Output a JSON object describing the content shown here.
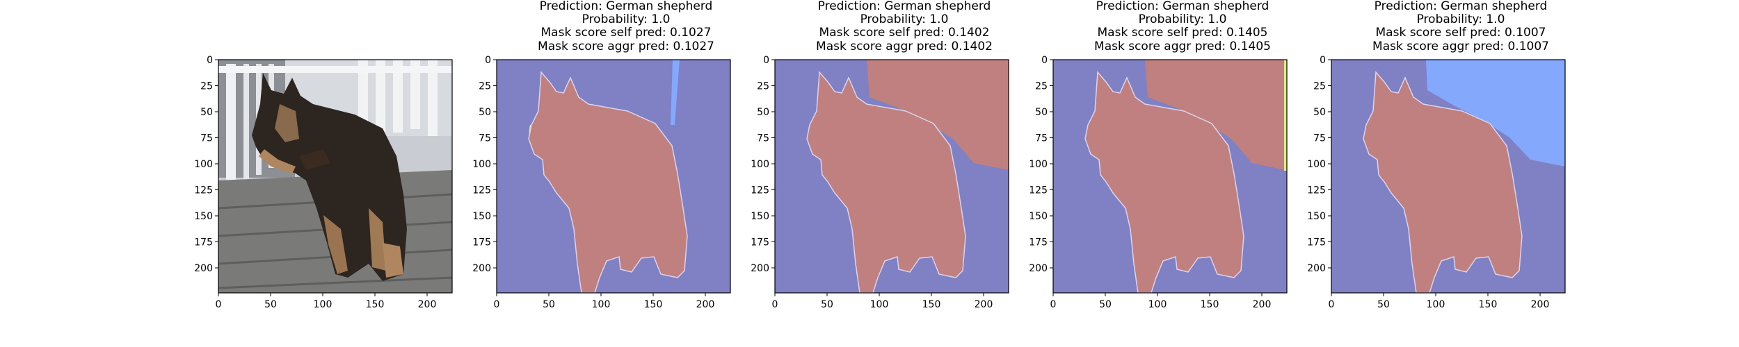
{
  "axis": {
    "x_ticks": [
      0,
      50,
      100,
      150,
      200
    ],
    "y_ticks": [
      0,
      25,
      50,
      75,
      100,
      125,
      150,
      175,
      200
    ],
    "xlim": [
      0,
      224
    ],
    "ylim": [
      224,
      0
    ]
  },
  "colors": {
    "background_mask": "#8080c4",
    "dog_mask": "#c08080",
    "region_light_blue": "#84a8fc",
    "region_yellow": "#d8f080",
    "photo_deck": "#7a7a78",
    "photo_dog": "#2d2620",
    "photo_tan": "#b08660",
    "photo_railing": "#e4e6ea"
  },
  "panels": [
    {
      "title": [],
      "image": "photo-german-shepherd"
    },
    {
      "title": [
        "Prediction: German shepherd",
        "Probability: 1.0",
        "Mask score self pred: 0.1027",
        "Mask score aggr pred: 0.1027"
      ],
      "image": "segmentation-mask-1"
    },
    {
      "title": [
        "Prediction: German shepherd",
        "Probability: 1.0",
        "Mask score self pred: 0.1402",
        "Mask score aggr pred: 0.1402"
      ],
      "image": "segmentation-mask-2"
    },
    {
      "title": [
        "Prediction: German shepherd",
        "Probability: 1.0",
        "Mask score self pred: 0.1405",
        "Mask score aggr pred: 0.1405"
      ],
      "image": "segmentation-mask-3"
    },
    {
      "title": [
        "Prediction: German shepherd",
        "Probability: 1.0",
        "Mask score self pred: 0.1007",
        "Mask score aggr pred: 0.1007"
      ],
      "image": "segmentation-mask-4"
    }
  ]
}
